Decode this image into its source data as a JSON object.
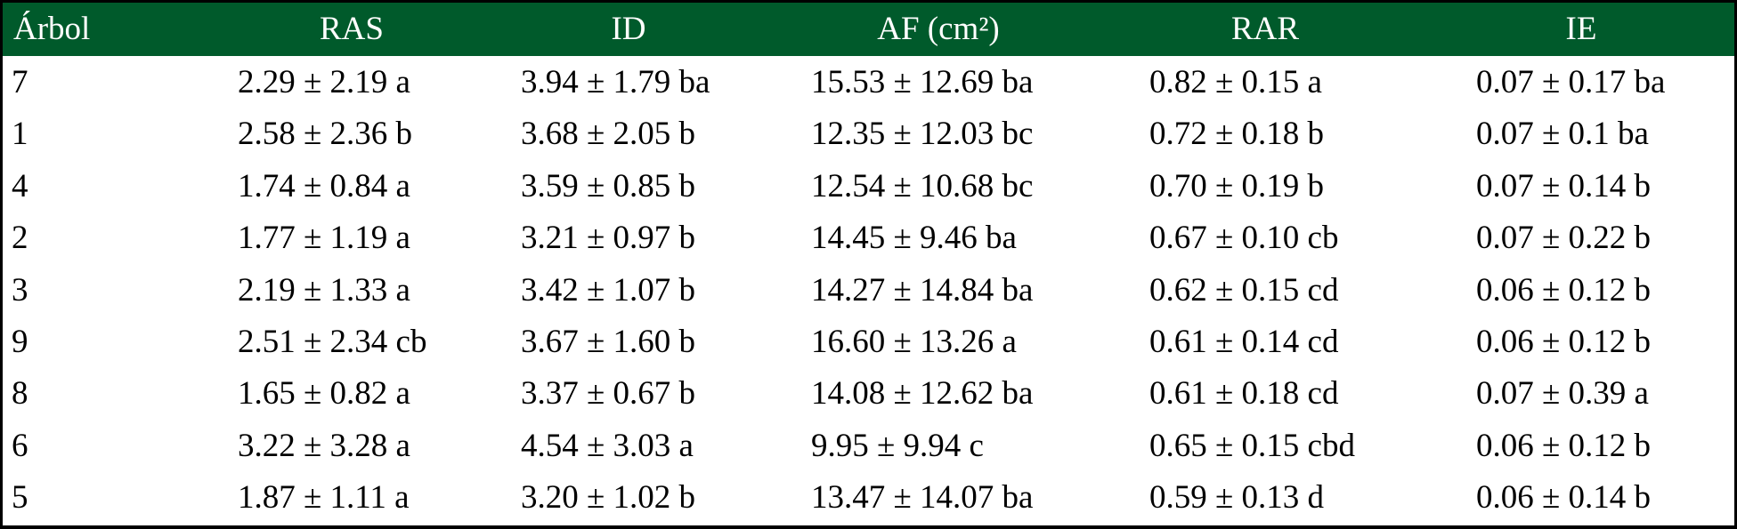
{
  "table": {
    "headers": [
      "Árbol",
      "RAS",
      "ID",
      "AF (cm²)",
      "RAR",
      "IE"
    ],
    "rows": [
      [
        "7",
        "2.29 ± 2.19 a",
        "3.94 ± 1.79 ba",
        "15.53 ± 12.69 ba",
        "0.82 ± 0.15 a",
        "0.07 ± 0.17 ba"
      ],
      [
        "1",
        "2.58 ± 2.36 b",
        "3.68 ± 2.05 b",
        "12.35 ± 12.03 bc",
        "0.72 ± 0.18 b",
        "0.07 ± 0.1 ba"
      ],
      [
        "4",
        "1.74 ± 0.84 a",
        "3.59 ± 0.85 b",
        "12.54 ± 10.68 bc",
        "0.70 ± 0.19 b",
        "0.07 ± 0.14 b"
      ],
      [
        "2",
        "1.77 ± 1.19 a",
        "3.21 ± 0.97 b",
        "14.45 ± 9.46 ba",
        "0.67 ± 0.10 cb",
        "0.07 ± 0.22 b"
      ],
      [
        "3",
        "2.19 ± 1.33 a",
        "3.42 ± 1.07 b",
        "14.27 ± 14.84 ba",
        "0.62 ± 0.15 cd",
        "0.06 ± 0.12 b"
      ],
      [
        "9",
        "2.51 ± 2.34 cb",
        "3.67 ± 1.60 b",
        "16.60 ± 13.26 a",
        "0.61 ± 0.14 cd",
        "0.06 ± 0.12 b"
      ],
      [
        "8",
        "1.65 ± 0.82 a",
        "3.37 ± 0.67 b",
        "14.08 ± 12.62 ba",
        "0.61 ± 0.18 cd",
        "0.07 ± 0.39 a"
      ],
      [
        "6",
        "3.22 ± 3.28 a",
        "4.54 ± 3.03 a",
        "9.95 ± 9.94 c",
        "0.65 ± 0.15 cbd",
        "0.06 ± 0.12 b"
      ],
      [
        "5",
        "1.87 ± 1.11 a",
        "3.20 ± 1.02 b",
        "13.47 ± 14.07 ba",
        "0.59 ± 0.13 d",
        "0.06 ± 0.14 b"
      ]
    ]
  }
}
